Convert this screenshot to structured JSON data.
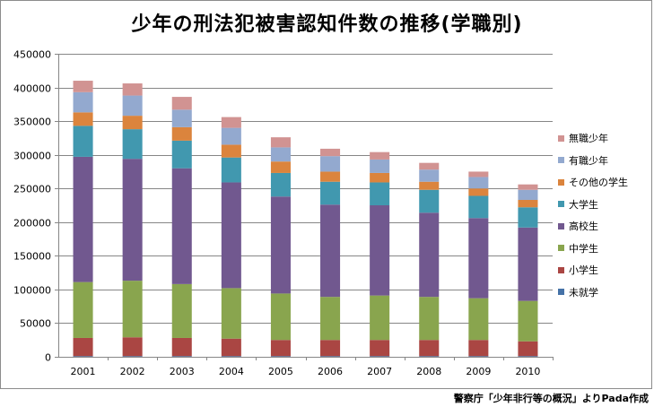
{
  "source_note": "警察庁「少年非行等の概況」よりPada作成",
  "chart_data": {
    "type": "bar",
    "stacked": true,
    "title": "少年の刑法犯被害認知件数の推移(学職別)",
    "xlabel": "",
    "ylabel": "",
    "ylim": [
      0,
      450000
    ],
    "ytick_step": 50000,
    "grid": true,
    "legend_position": "right",
    "categories": [
      "2001",
      "2002",
      "2003",
      "2004",
      "2005",
      "2006",
      "2007",
      "2008",
      "2009",
      "2010"
    ],
    "series": [
      {
        "name": "未就学",
        "color": "#4572a7",
        "values": [
          1000,
          1000,
          1000,
          1000,
          1000,
          1000,
          1000,
          1000,
          1000,
          1000
        ]
      },
      {
        "name": "小学生",
        "color": "#aa4643",
        "values": [
          27000,
          28000,
          27000,
          26000,
          24000,
          24000,
          24000,
          24000,
          24000,
          22000
        ]
      },
      {
        "name": "中学生",
        "color": "#89a54e",
        "values": [
          83000,
          84000,
          80000,
          75000,
          69000,
          64000,
          66000,
          64000,
          62000,
          60000
        ]
      },
      {
        "name": "高校生",
        "color": "#71588f",
        "values": [
          186000,
          181000,
          172000,
          157000,
          144000,
          137000,
          134000,
          125000,
          119000,
          109000
        ]
      },
      {
        "name": "大学生",
        "color": "#4198af",
        "values": [
          46000,
          44000,
          41000,
          37000,
          35000,
          34000,
          34000,
          34000,
          33000,
          30000
        ]
      },
      {
        "name": "その他の学生",
        "color": "#db843d",
        "values": [
          20000,
          20000,
          20000,
          19000,
          17000,
          15000,
          14000,
          12000,
          11000,
          11000
        ]
      },
      {
        "name": "有職少年",
        "color": "#93a9cf",
        "values": [
          30000,
          30000,
          26000,
          25000,
          21000,
          23000,
          20000,
          18000,
          17000,
          15000
        ]
      },
      {
        "name": "無職少年",
        "color": "#d19392",
        "values": [
          17000,
          18000,
          19000,
          16000,
          15000,
          11000,
          11000,
          10000,
          8000,
          8000
        ]
      }
    ]
  }
}
